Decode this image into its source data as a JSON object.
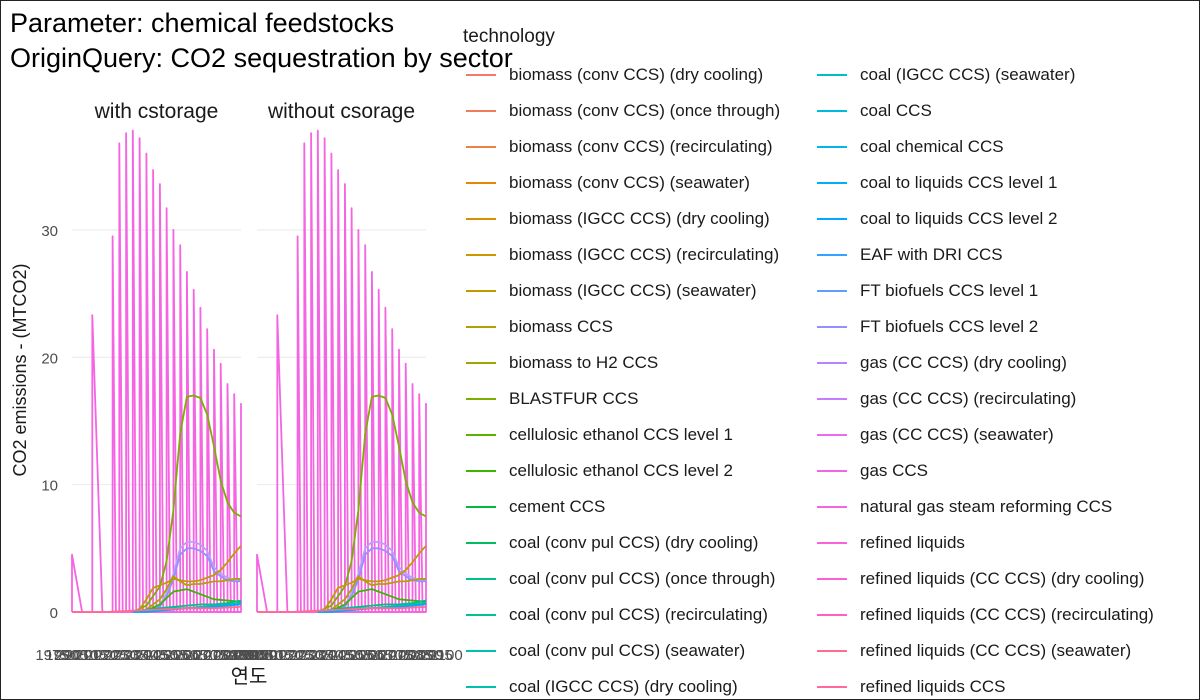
{
  "title": "Parameter: chemical feedstocks\nOriginQuery: CO2 sequestration by sector",
  "legend_title": "technology",
  "colors": {
    "pink": "#F564E3",
    "olive": "#7CAE00",
    "lavender": "#B79FFF",
    "green": "#00BA38",
    "teal": "#00C0AF",
    "blue": "#619CFF",
    "gold": "#C09B00"
  },
  "chart_data": {
    "type": "line",
    "facets": [
      "with cstorage",
      "without csorage"
    ],
    "xlabel": "연도",
    "ylabel": "CO2 emissions - (MTCO2)",
    "ylim": [
      0,
      38
    ],
    "yticks": [
      0,
      10,
      20,
      30
    ],
    "xlim": [
      1975,
      2100
    ],
    "x_tick_labels": [
      "1975",
      "1990",
      "2005",
      "2010",
      "2015",
      "2020",
      "2025",
      "2030",
      "2035",
      "2040",
      "2045",
      "2050",
      "2055",
      "2060",
      "2065",
      "2070",
      "2075",
      "2080",
      "2085",
      "2090",
      "2095",
      "2100"
    ],
    "grid": true,
    "legend_position": "right",
    "series": [
      {
        "name": "natural gas steam reforming CCS",
        "color": "#F564E3",
        "style": "zigzag",
        "x": [
          1975,
          1990,
          2005,
          2010,
          2015,
          2020,
          2025,
          2030,
          2035,
          2040,
          2045,
          2050,
          2055,
          2060,
          2065,
          2070,
          2075,
          2080,
          2085,
          2090,
          2095,
          2100
        ],
        "values": [
          4.5,
          23.3,
          29.5,
          36.8,
          37.6,
          37.8,
          37.2,
          36.0,
          34.7,
          33.6,
          31.7,
          30.0,
          28.8,
          26.7,
          25.3,
          23.9,
          22.2,
          20.6,
          19.5,
          17.9,
          17.1,
          16.4
        ]
      },
      {
        "name": "cement CCS",
        "color": "#7CAE00",
        "x": [
          2020,
          2030,
          2040,
          2045,
          2050,
          2055,
          2060,
          2065,
          2070,
          2075,
          2080,
          2085,
          2090,
          2095,
          2100
        ],
        "values": [
          0,
          0.5,
          2.0,
          4.0,
          8.0,
          14.0,
          16.9,
          17.0,
          16.8,
          15.5,
          13.0,
          10.3,
          8.6,
          7.8,
          7.5
        ]
      },
      {
        "name": "gas (CC CCS) (recirculating)",
        "color": "#B79FFF",
        "x": [
          2020,
          2030,
          2040,
          2045,
          2050,
          2055,
          2060,
          2065,
          2070,
          2075,
          2080,
          2085,
          2090,
          2095,
          2100
        ],
        "values": [
          0,
          0,
          0.5,
          1.5,
          3.0,
          5.0,
          5.5,
          5.5,
          5.3,
          4.8,
          3.5,
          3.0,
          2.7,
          2.5,
          2.5
        ]
      },
      {
        "name": "FT biofuels CCS level 2",
        "color": "#9590FF",
        "x": [
          2020,
          2030,
          2040,
          2045,
          2050,
          2055,
          2060,
          2065,
          2070,
          2075,
          2080,
          2085,
          2090,
          2095,
          2100
        ],
        "values": [
          0,
          0,
          0.4,
          1.2,
          2.6,
          4.5,
          5.0,
          5.0,
          4.8,
          4.4,
          3.2,
          2.8,
          2.5,
          2.4,
          2.4
        ]
      },
      {
        "name": "biomass (IGCC CCS) (seawater)",
        "color": "#C09B00",
        "x": [
          2020,
          2025,
          2030,
          2035,
          2040,
          2045,
          2050,
          2055,
          2060,
          2065,
          2070,
          2075,
          2080,
          2085,
          2090,
          2095,
          2100
        ],
        "values": [
          0,
          0.2,
          1.0,
          1.9,
          2.1,
          2.3,
          2.6,
          2.5,
          2.4,
          2.4,
          2.5,
          2.7,
          2.9,
          3.3,
          3.9,
          4.6,
          5.2
        ]
      },
      {
        "name": "biomass CCS",
        "color": "#AEA200",
        "x": [
          2020,
          2030,
          2040,
          2045,
          2050,
          2055,
          2060,
          2065,
          2070,
          2075,
          2080,
          2085,
          2090,
          2095,
          2100
        ],
        "values": [
          0,
          0.2,
          1.0,
          1.8,
          2.8,
          2.4,
          2.1,
          2.2,
          2.2,
          2.3,
          2.4,
          2.4,
          2.5,
          2.6,
          2.6
        ]
      },
      {
        "name": "cellulosic ethanol CCS level 2",
        "color": "#39B600",
        "x": [
          2020,
          2030,
          2040,
          2050,
          2060,
          2070,
          2080,
          2090,
          2100
        ],
        "values": [
          0,
          0.1,
          0.6,
          1.6,
          1.8,
          1.4,
          1.0,
          0.9,
          0.8
        ]
      },
      {
        "name": "coal (conv pul CCS) (once through)",
        "color": "#00C08B",
        "x": [
          2020,
          2030,
          2040,
          2050,
          2060,
          2070,
          2080,
          2090,
          2100
        ],
        "values": [
          0,
          0.2,
          0.3,
          0.4,
          0.5,
          0.6,
          0.6,
          0.7,
          0.9
        ]
      },
      {
        "name": "coal (IGCC CCS) (dry cooling)",
        "color": "#00C0AF",
        "x": [
          2020,
          2030,
          2040,
          2050,
          2060,
          2070,
          2080,
          2090,
          2100
        ],
        "values": [
          0,
          0.1,
          0.2,
          0.3,
          0.3,
          0.4,
          0.5,
          0.6,
          0.7
        ]
      },
      {
        "name": "coal to liquids CCS level 2",
        "color": "#00A9FF",
        "x": [
          2020,
          2030,
          2040,
          2050,
          2060,
          2070,
          2080,
          2090,
          2100
        ],
        "values": [
          0,
          0,
          0.1,
          0.2,
          0.3,
          0.3,
          0.4,
          0.5,
          0.6
        ]
      },
      {
        "name": "refined liquids (CC CCS) (seawater)",
        "color": "#FF6C91",
        "x": [
          1975,
          2000,
          2020,
          2040,
          2060,
          2080,
          2100
        ],
        "values": [
          0,
          0,
          0.1,
          0.2,
          0.3,
          0.3,
          0.4
        ]
      }
    ],
    "legend": {
      "column1": [
        {
          "label": "biomass (conv CCS) (dry cooling)",
          "color": "#F8766D"
        },
        {
          "label": "biomass (conv CCS) (once through)",
          "color": "#F37B59"
        },
        {
          "label": "biomass (conv CCS) (recirculating)",
          "color": "#ED8141"
        },
        {
          "label": "biomass (conv CCS) (seawater)",
          "color": "#E58700"
        },
        {
          "label": "biomass (IGCC CCS) (dry cooling)",
          "color": "#D89000"
        },
        {
          "label": "biomass (IGCC CCS) (recirculating)",
          "color": "#CD9600"
        },
        {
          "label": "biomass (IGCC CCS) (seawater)",
          "color": "#C09B00"
        },
        {
          "label": "biomass CCS",
          "color": "#AEA200"
        },
        {
          "label": "biomass to H2 CCS",
          "color": "#9DA700"
        },
        {
          "label": "BLASTFUR CCS",
          "color": "#7CAE00"
        },
        {
          "label": "cellulosic ethanol CCS level 1",
          "color": "#5BB300"
        },
        {
          "label": "cellulosic ethanol CCS level 2",
          "color": "#39B600"
        },
        {
          "label": "cement CCS",
          "color": "#00BA38"
        },
        {
          "label": "coal (conv pul CCS) (dry cooling)",
          "color": "#00BD5F"
        },
        {
          "label": "coal (conv pul CCS) (once through)",
          "color": "#00C08B"
        },
        {
          "label": "coal (conv pul CCS) (recirculating)",
          "color": "#00C19A"
        },
        {
          "label": "coal (conv pul CCS) (seawater)",
          "color": "#00C1A9"
        },
        {
          "label": "coal (IGCC CCS) (dry cooling)",
          "color": "#00C0AF"
        }
      ],
      "column2": [
        {
          "label": "coal (IGCC CCS) (seawater)",
          "color": "#00BFC4"
        },
        {
          "label": "coal CCS",
          "color": "#00BCD8"
        },
        {
          "label": "coal chemical CCS",
          "color": "#00B8E7"
        },
        {
          "label": "coal to liquids CCS level 1",
          "color": "#00B0F6"
        },
        {
          "label": "coal to liquids CCS level 2",
          "color": "#00A9FF"
        },
        {
          "label": "EAF with DRI CCS",
          "color": "#35A2FF"
        },
        {
          "label": "FT biofuels CCS level 1",
          "color": "#619CFF"
        },
        {
          "label": "FT biofuels CCS level 2",
          "color": "#9590FF"
        },
        {
          "label": "gas (CC CCS) (dry cooling)",
          "color": "#B983FF"
        },
        {
          "label": "gas (CC CCS) (recirculating)",
          "color": "#C77CFF"
        },
        {
          "label": "gas (CC CCS) (seawater)",
          "color": "#E76BF3"
        },
        {
          "label": "gas CCS",
          "color": "#F066EA"
        },
        {
          "label": "natural gas steam reforming CCS",
          "color": "#F564E3"
        },
        {
          "label": "refined liquids",
          "color": "#FA62DB"
        },
        {
          "label": "refined liquids (CC CCS) (dry cooling)",
          "color": "#FE61CF"
        },
        {
          "label": "refined liquids (CC CCS) (recirculating)",
          "color": "#FF62BC"
        },
        {
          "label": "refined liquids (CC CCS) (seawater)",
          "color": "#FF6C91"
        },
        {
          "label": "refined liquids CCS",
          "color": "#FF6A98"
        }
      ]
    }
  }
}
